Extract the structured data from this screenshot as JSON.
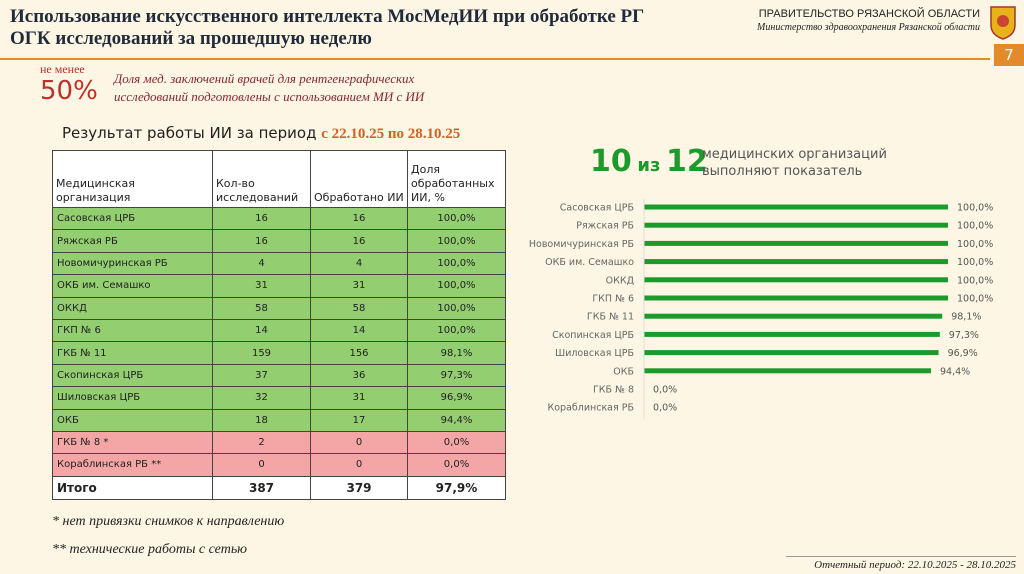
{
  "header": {
    "title_lines": [
      "Использование искусственного интеллекта МосМедИИ при обработке РГ",
      "ОГК исследований за прошедшую неделю"
    ],
    "org": "ПРАВИТЕЛЬСТВО РЯЗАНСКОЙ ОБЛАСТИ",
    "ministry": "Министерство здравоохранения Рязанской области",
    "page": "7"
  },
  "target": {
    "prefix": "не менее",
    "value": "50%",
    "text_lines": [
      "Доля мед. заключений врачей для рентгенграфических",
      "исследований подготовлены с использованием МИ с ИИ"
    ]
  },
  "result": {
    "label": "Результат работы ИИ за период ",
    "period": "с 22.10.25 по 28.10.25"
  },
  "table": {
    "columns": [
      "Медицинская организация",
      "Кол-во исследований",
      "Обработано ИИ",
      "Доля обработанных ИИ, %"
    ],
    "rows": [
      [
        "Сасовская ЦРБ",
        "16",
        "16",
        "100,0%"
      ],
      [
        "Ряжская РБ",
        "16",
        "16",
        "100,0%"
      ],
      [
        "Новомичуринская РБ",
        "4",
        "4",
        "100,0%"
      ],
      [
        "ОКБ им. Семашко",
        "31",
        "31",
        "100,0%"
      ],
      [
        "ОККД",
        "58",
        "58",
        "100,0%"
      ],
      [
        "ГКП № 6",
        "14",
        "14",
        "100,0%"
      ],
      [
        "ГКБ № 11",
        "159",
        "156",
        "98,1%"
      ],
      [
        "Скопинская ЦРБ",
        "37",
        "36",
        "97,3%"
      ],
      [
        "Шиловская ЦРБ",
        "32",
        "31",
        "96,9%"
      ],
      [
        "ОКБ",
        "18",
        "17",
        "94,4%"
      ],
      [
        "ГКБ № 8 *",
        "2",
        "0",
        "0,0%"
      ],
      [
        "Кораблинская РБ **",
        "0",
        "0",
        "0,0%"
      ]
    ],
    "row_colors": [
      "#93cf70",
      "#93cf70",
      "#93cf70",
      "#93cf70",
      "#93cf70",
      "#93cf70",
      "#93cf70",
      "#93cf70",
      "#93cf70",
      "#93cf70",
      "#f4a6a6",
      "#f4a6a6"
    ],
    "total": [
      "Итого",
      "387",
      "379",
      "97,9%"
    ]
  },
  "highlight": {
    "count": "10",
    "of": "из",
    "total": "12",
    "text_lines": [
      "медицинских организаций",
      "выполняют показатель"
    ]
  },
  "chart_data": {
    "type": "bar",
    "orientation": "horizontal",
    "color": "#1c9a2b",
    "categories": [
      "Сасовская ЦРБ",
      "Ряжская РБ",
      "Новомичуринская РБ",
      "ОКБ им. Семашко",
      "ОККД",
      "ГКП № 6",
      "ГКБ № 11",
      "Скопинская ЦРБ",
      "Шиловская ЦРБ",
      "ОКБ",
      "ГКБ № 8",
      "Кораблинская РБ"
    ],
    "values": [
      100,
      100,
      100,
      100,
      100,
      100,
      98.1,
      97.3,
      96.9,
      94.4,
      0,
      0
    ],
    "value_labels": [
      "100,0%",
      "100,0%",
      "100,0%",
      "100,0%",
      "100,0%",
      "100,0%",
      "98,1%",
      "97,3%",
      "96,9%",
      "94,4%",
      "0,0%",
      "0,0%"
    ]
  },
  "footnotes": [
    "* нет привязки снимков к направлению",
    "** технические работы с сетью"
  ],
  "report_period": "Отчетный период: 22.10.2025 - 28.10.2025"
}
